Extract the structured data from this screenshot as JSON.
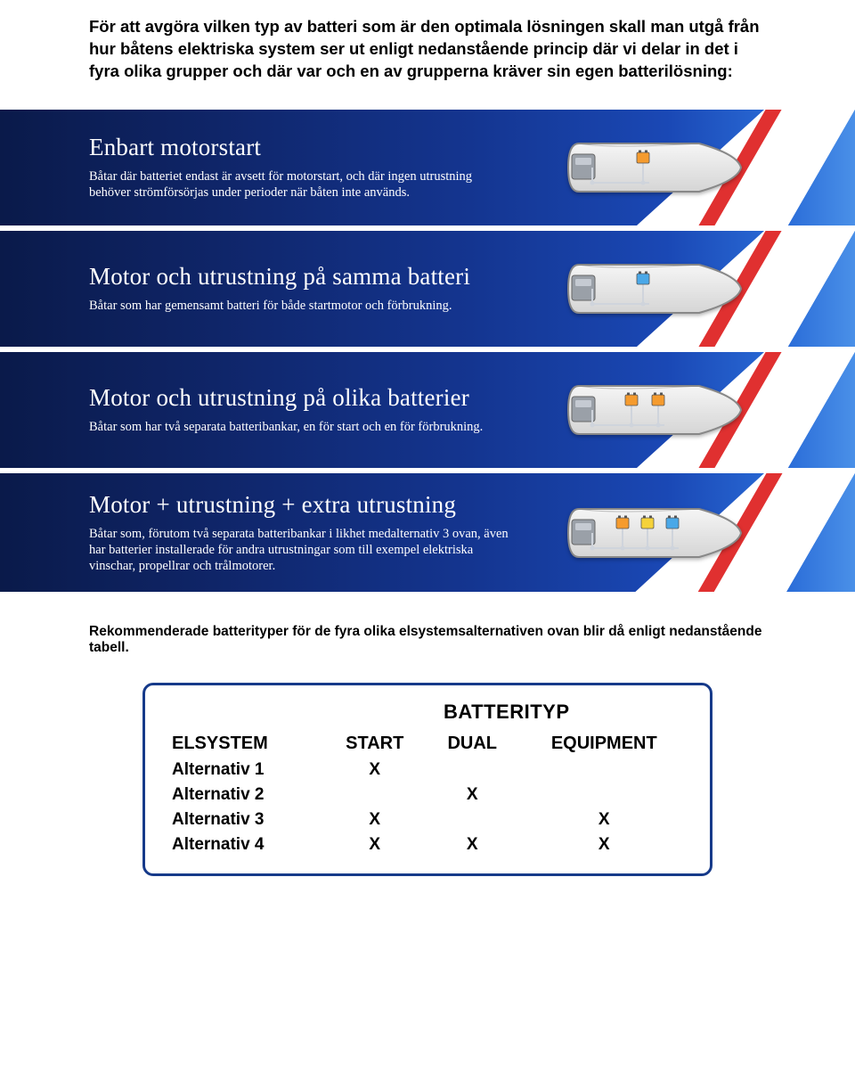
{
  "colors": {
    "panel_grad_start": "#0a1a4a",
    "panel_grad_end": "#4a90e8",
    "red_stripe": "#e03030",
    "table_border": "#163a8a",
    "boat_fill_top": "#f5f5f5",
    "boat_fill_bot": "#d5d5d5",
    "boat_stroke": "#888888",
    "engine_fill": "#9aa0a8",
    "battery_orange": "#f59b2e",
    "battery_blue": "#4aa8e8",
    "battery_yellow": "#f5d23a",
    "wire": "#cfd4dc"
  },
  "intro": "För att avgöra vilken typ av batteri som är den optimala lösningen skall man utgå från hur båtens elektriska system ser ut enligt nedanstående princip där vi delar in det i fyra olika grupper och där var och en av grupperna kräver sin egen batterilösning:",
  "panels": [
    {
      "title": "Enbart motorstart",
      "desc": "Båtar där batteriet endast är avsett för motorstart, och där ingen utrustning behöver strömförsörjas under perioder när båten inte används.",
      "batteries": [
        "orange"
      ]
    },
    {
      "title": "Motor och utrustning på samma batteri",
      "desc": "Båtar som har gemensamt batteri för både startmotor och förbrukning.",
      "batteries": [
        "blue"
      ]
    },
    {
      "title": "Motor och utrustning på olika batterier",
      "desc": "Båtar som har två separata batteribankar, en för start och en för förbrukning.",
      "batteries": [
        "orange",
        "orange"
      ]
    },
    {
      "title": "Motor + utrustning + extra utrustning",
      "desc": "Båtar som, förutom två separata batteribankar i likhet medalternativ 3 ovan, även har batterier installerade för andra utrustningar som till exempel elektriska vinschar, propellrar och trålmotorer.",
      "batteries": [
        "orange",
        "yellow",
        "blue"
      ]
    }
  ],
  "reco": "Rekommenderade batterityper för de fyra olika elsystemsalternativen ovan blir då enligt nedanstående tabell.",
  "table": {
    "type_header": "BATTERITYP",
    "columns": [
      "ELSYSTEM",
      "START",
      "DUAL",
      "EQUIPMENT"
    ],
    "rows": [
      {
        "label": "Alternativ 1",
        "cells": [
          "X",
          "",
          ""
        ]
      },
      {
        "label": "Alternativ 2",
        "cells": [
          "",
          "X",
          ""
        ]
      },
      {
        "label": "Alternativ 3",
        "cells": [
          "X",
          "",
          "X"
        ]
      },
      {
        "label": "Alternativ 4",
        "cells": [
          "X",
          "X",
          "X"
        ]
      }
    ]
  }
}
